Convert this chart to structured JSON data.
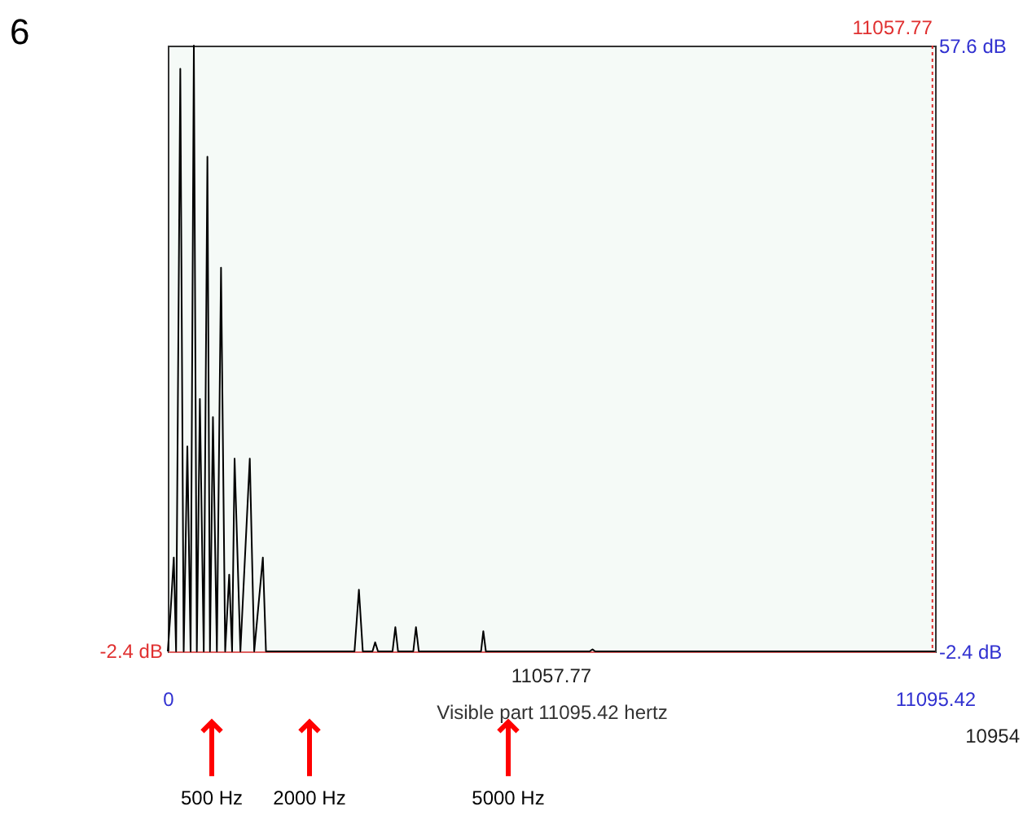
{
  "chart_data": {
    "type": "line",
    "title": "6",
    "xlabel": "Visible part 11095.42 hertz",
    "x": [
      0,
      40,
      87,
      120,
      181,
      230,
      283,
      330,
      377,
      420,
      464,
      520,
      573,
      610,
      653,
      710,
      770,
      830,
      888,
      930,
      966,
      1050,
      1186,
      1250,
      1375,
      1420,
      2700,
      2764,
      2820,
      2960,
      2999,
      3040,
      3250,
      3291,
      3330,
      3550,
      3589,
      3630,
      4530,
      4563,
      4600,
      6100,
      6142,
      6180,
      11095.42
    ],
    "series": [
      {
        "color": "#000000",
        "axis": "y2",
        "values": [
          -2.4,
          1.5,
          6.9,
          -2.4,
          55.3,
          -2.4,
          17.9,
          -2.4,
          57.6,
          -2.4,
          22.6,
          -2.4,
          46.6,
          -2.4,
          20.8,
          -2.4,
          35.6,
          -2.4,
          5.2,
          -2.4,
          16.7,
          -2.4,
          16.7,
          -2.4,
          6.9,
          -2.4,
          -2.4,
          3.7,
          -2.4,
          -2.4,
          -1.5,
          -2.4,
          -2.4,
          0.0,
          -2.4,
          -2.4,
          0.0,
          -2.4,
          -2.4,
          -0.4,
          -2.4,
          -2.4,
          -2.2,
          -2.4,
          -2.4
        ]
      }
    ],
    "xlim": [
      0,
      11095.42
    ],
    "xticks": [
      0,
      {
        "value": 11095.42,
        "label": "11095.42"
      }
    ],
    "y2lim": [
      -2.4,
      57.6
    ],
    "y2ticks": [
      {
        "value": -2.4,
        "label": "-2.4 dB"
      },
      {
        "value": 57.6,
        "label": "57.6 dB"
      }
    ],
    "ref_lines": [
      {
        "axis": "x",
        "value": 11057.77,
        "label": "11057.77",
        "color": "#e03030",
        "line_style": "dotted"
      }
    ],
    "annotations": [
      "-2.4 dB",
      "11057.77",
      "10954",
      "500 Hz",
      "2000 Hz",
      "5000 Hz"
    ],
    "grid": false,
    "marker": "none",
    "line_style": "solid"
  }
}
